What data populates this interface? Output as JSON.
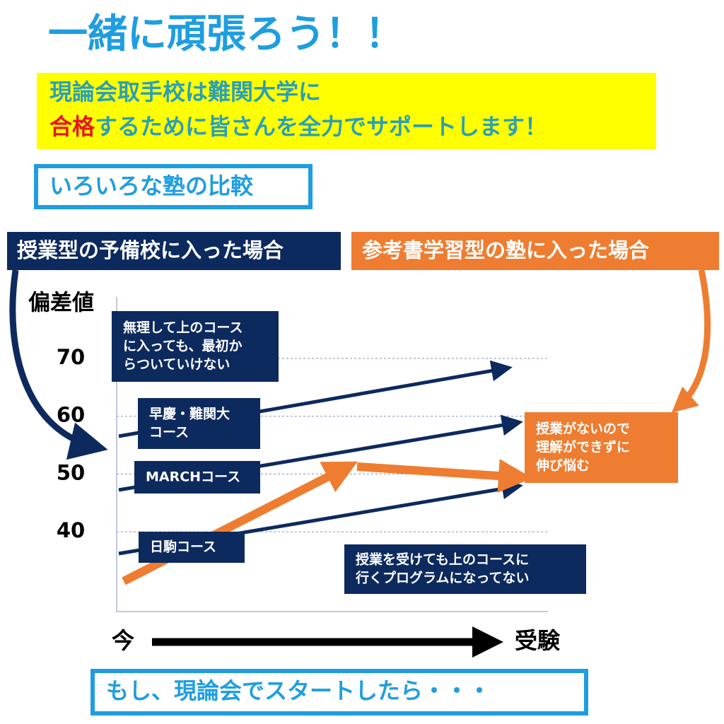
{
  "header": {
    "title": "一緒に頑張ろう！！"
  },
  "banner": {
    "line1": "現論会取手校は難関大学に",
    "highlight": "合格",
    "line2_rest": "するために皆さんを全力でサポートします！"
  },
  "section_label": "いろいろな塾の比較",
  "left_heading": "授業型の予備校に入った場合",
  "right_heading": "参考書学習型の塾に入った場合",
  "axis": {
    "y_label": "偏差値",
    "ticks": [
      70,
      60,
      50,
      40
    ],
    "x_start": "今",
    "x_end": "受験"
  },
  "notes": {
    "too_hard": [
      "無理して上のコース",
      "に入っても、最初か",
      "らついていけない"
    ],
    "soukei": [
      "早慶・難関大",
      "コース"
    ],
    "march": [
      "MARCHコース"
    ],
    "nikkoma": [
      "日駒コース"
    ],
    "no_program": [
      "授業を受けても上のコースに",
      "行くプログラムになってない"
    ],
    "stagnate": [
      "授業がないので",
      "理解ができずに",
      "伸び悩む"
    ]
  },
  "footer": "もし、現論会でスタートしたら・・・"
}
